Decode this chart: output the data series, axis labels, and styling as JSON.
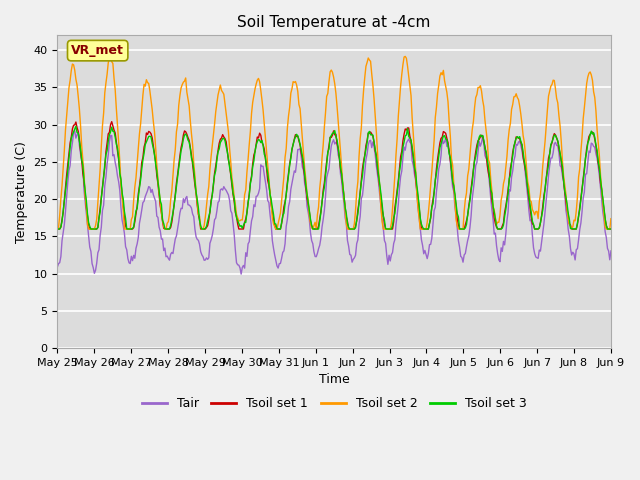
{
  "title": "Soil Temperature at -4cm",
  "xlabel": "Time",
  "ylabel": "Temperature (C)",
  "ylim": [
    0,
    42
  ],
  "yticks": [
    0,
    5,
    10,
    15,
    20,
    25,
    30,
    35,
    40
  ],
  "bg_color": "#dcdcdc",
  "fig_bg": "#f0f0f0",
  "line_colors": {
    "Tair": "#9966cc",
    "Tsoil set 1": "#cc0000",
    "Tsoil set 2": "#ff9900",
    "Tsoil set 3": "#00cc00"
  },
  "annotation_text": "VR_met",
  "annotation_bg": "#ffff99",
  "annotation_border": "#999900",
  "annotation_text_color": "#880000",
  "x_tick_labels": [
    "May 25",
    "May 26",
    "May 27",
    "May 28",
    "May 29",
    "May 30",
    "May 31",
    "Jun 1",
    "Jun 2",
    "Jun 3",
    "Jun 4",
    "Jun 5",
    "Jun 6",
    "Jun 7",
    "Jun 8",
    "Jun 9"
  ],
  "n_points": 480,
  "days": 15
}
